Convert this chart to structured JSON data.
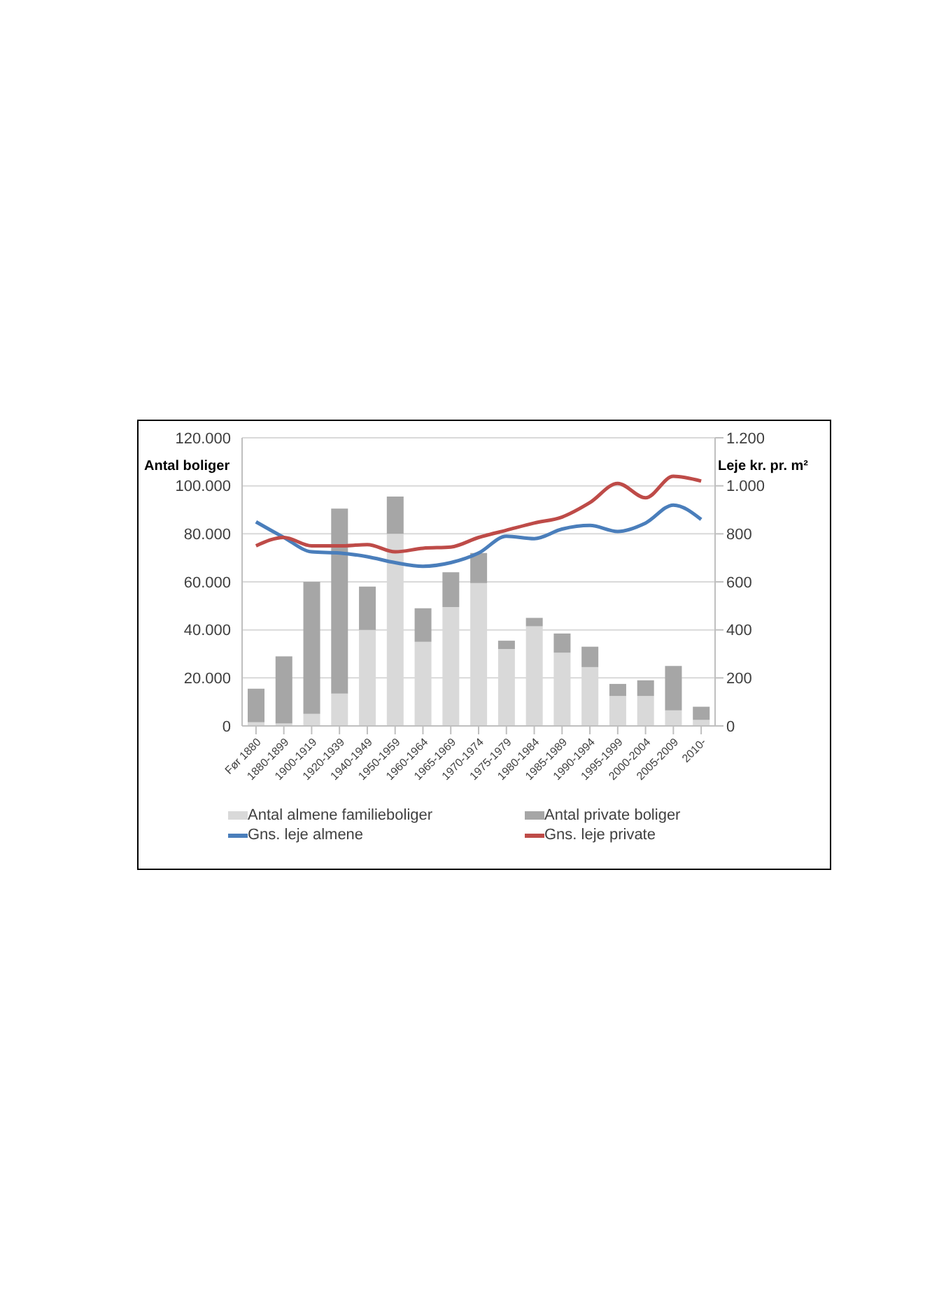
{
  "chart_data": {
    "type": "bar",
    "stacked": true,
    "ylabel": "Antal boliger",
    "y2label": "Leje kr. pr. m²",
    "categories": [
      "Før 1880",
      "1880-1899",
      "1900-1919",
      "1920-1939",
      "1940-1949",
      "1950-1959",
      "1960-1964",
      "1965-1969",
      "1970-1974",
      "1975-1979",
      "1980-1984",
      "1985-1989",
      "1990-1994",
      "1995-1999",
      "2000-2004",
      "2005-2009",
      "2010-"
    ],
    "series": [
      {
        "name": "Antal almene familieboliger",
        "color": "#d9d9d9",
        "values": [
          1500,
          1000,
          5000,
          13500,
          40000,
          80000,
          35000,
          49500,
          59500,
          32000,
          41500,
          30500,
          24500,
          12500,
          12500,
          6500,
          2500
        ]
      },
      {
        "name": "Antal private boliger",
        "color": "#a6a6a6",
        "values": [
          14000,
          28000,
          55000,
          77000,
          18000,
          15500,
          14000,
          14500,
          12500,
          3500,
          3500,
          8000,
          8500,
          5000,
          6500,
          18500,
          5500
        ]
      },
      {
        "name": "Gns. leje almene",
        "type": "line",
        "axis": "y2",
        "color": "#4a7ebb",
        "values": [
          850,
          785,
          725,
          720,
          705,
          680,
          665,
          680,
          720,
          790,
          780,
          820,
          835,
          810,
          845,
          920,
          860
        ]
      },
      {
        "name": "Gns. leje private",
        "type": "line",
        "axis": "y2",
        "color": "#be4b48",
        "values": [
          750,
          785,
          750,
          750,
          755,
          725,
          740,
          745,
          785,
          815,
          845,
          870,
          930,
          1010,
          950,
          1040,
          1020
        ]
      }
    ],
    "ylim": [
      0,
      120000
    ],
    "yticks": [
      {
        "value": 0,
        "label": "0"
      },
      {
        "value": 20000,
        "label": "20.000"
      },
      {
        "value": 40000,
        "label": "40.000"
      },
      {
        "value": 60000,
        "label": "60.000"
      },
      {
        "value": 80000,
        "label": "80.000"
      },
      {
        "value": 100000,
        "label": "100.000"
      },
      {
        "value": 120000,
        "label": "120.000"
      }
    ],
    "y2lim": [
      0,
      1200
    ],
    "y2ticks": [
      {
        "value": 0,
        "label": "0"
      },
      {
        "value": 200,
        "label": "200"
      },
      {
        "value": 400,
        "label": "400"
      },
      {
        "value": 600,
        "label": "600"
      },
      {
        "value": 800,
        "label": "800"
      },
      {
        "value": 1000,
        "label": "1.000"
      },
      {
        "value": 1200,
        "label": "1.200"
      }
    ],
    "grid": "y",
    "legend": "bottom",
    "marker": "none",
    "line_style": "solid"
  }
}
